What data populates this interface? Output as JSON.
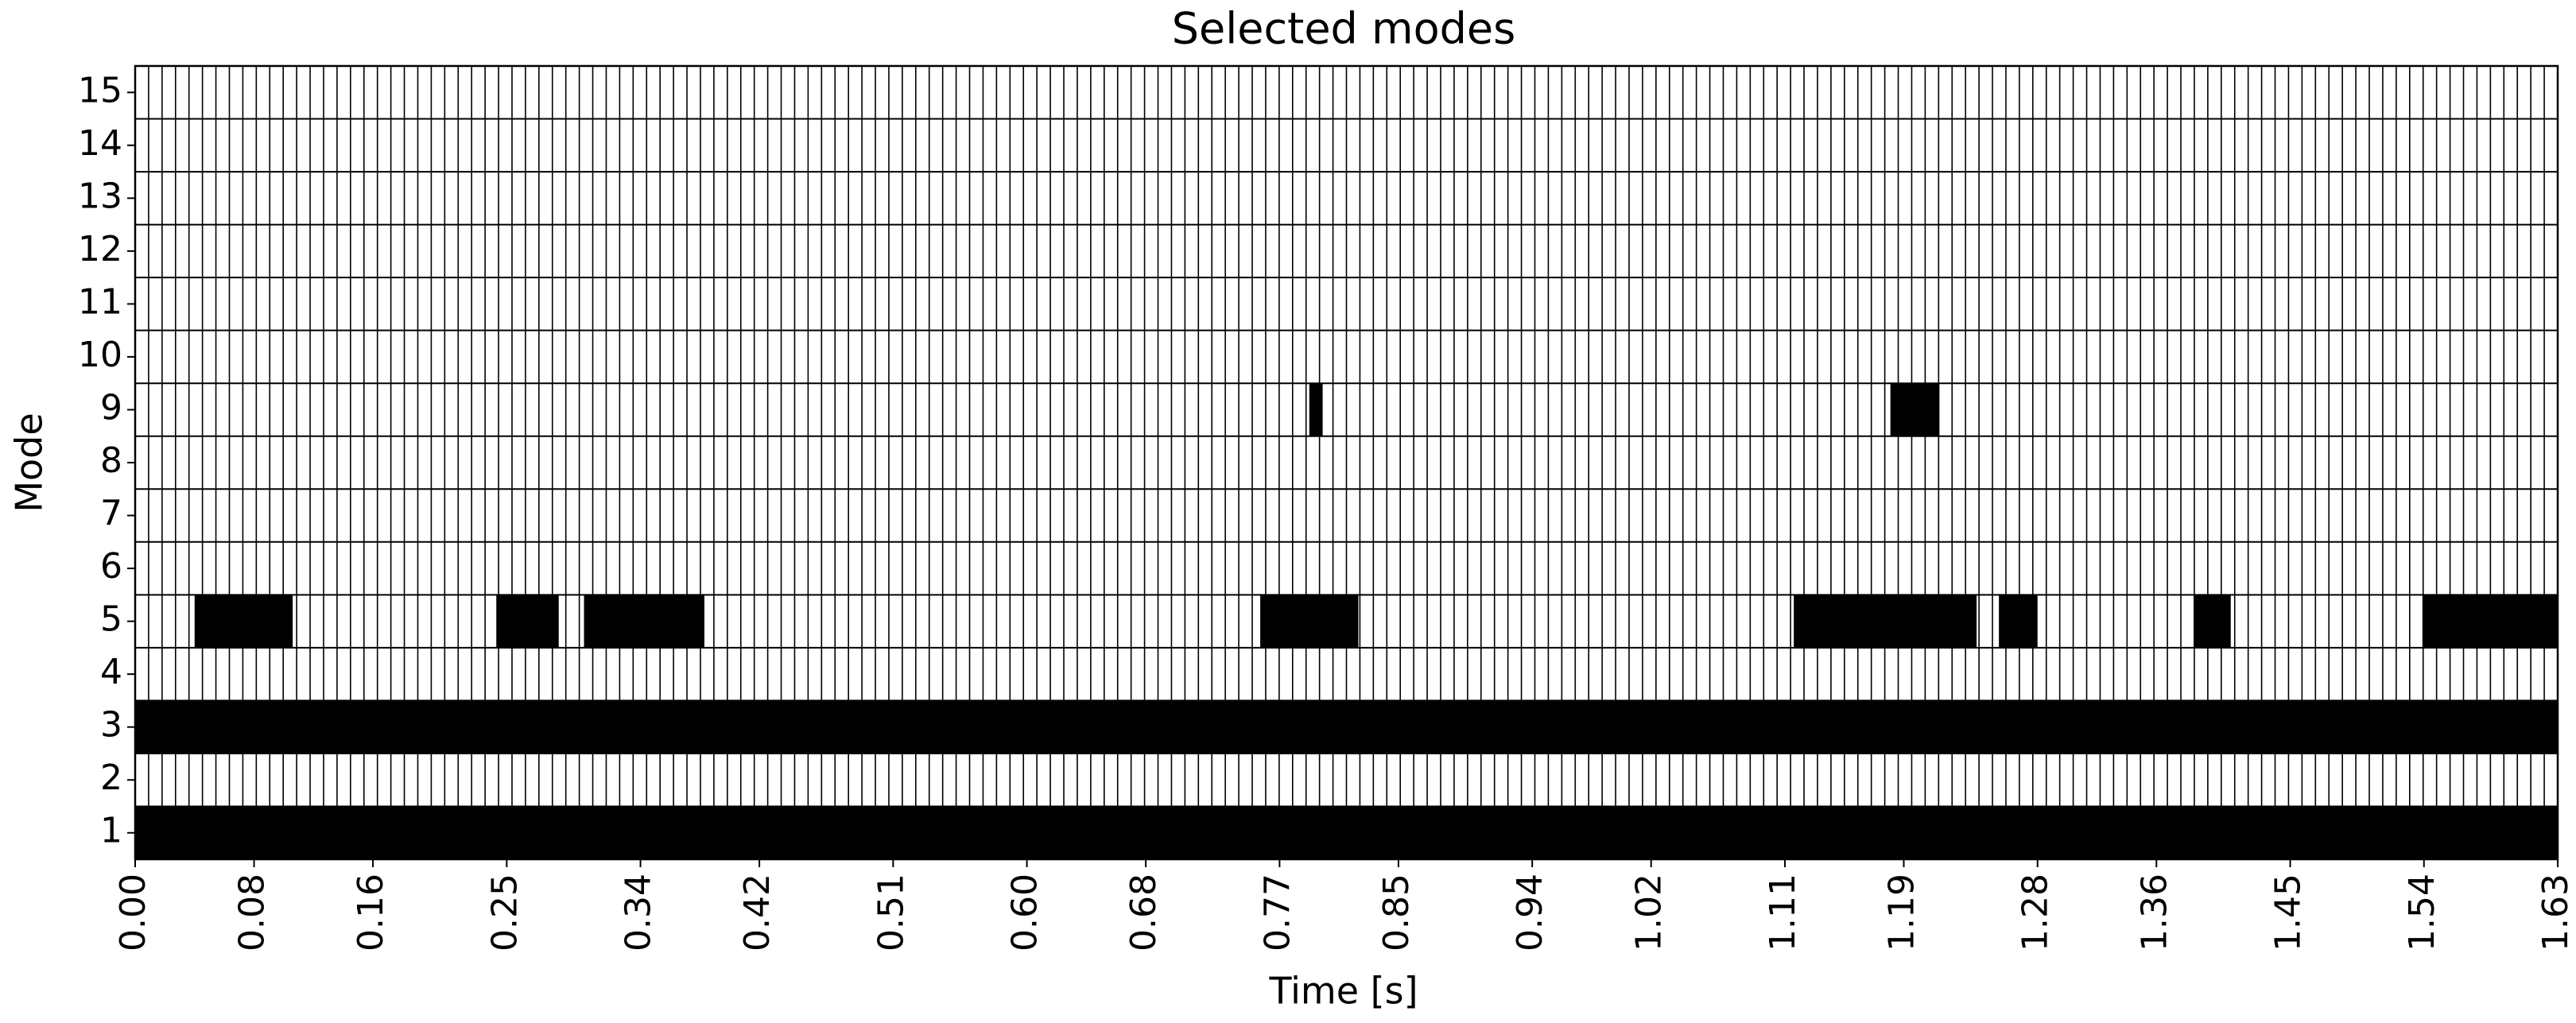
{
  "chart_data": {
    "type": "heatmap",
    "title": "Selected modes",
    "x_label": "Time [s]",
    "y_label": "Mode",
    "xlim": [
      0,
      1.63
    ],
    "xticks": [
      0.0,
      0.08,
      0.16,
      0.25,
      0.34,
      0.42,
      0.51,
      0.6,
      0.68,
      0.77,
      0.85,
      0.94,
      1.02,
      1.11,
      1.19,
      1.28,
      1.36,
      1.45,
      1.54,
      1.63
    ],
    "ylim": [
      0.5,
      15.5
    ],
    "yticks": [
      1,
      2,
      3,
      4,
      5,
      6,
      7,
      8,
      9,
      10,
      11,
      12,
      13,
      14,
      15
    ],
    "color": "#000000",
    "rows": [
      [
        [
          0,
          1.63
        ]
      ],
      [],
      [
        [
          0,
          1.63
        ]
      ],
      [],
      [
        [
          0.04,
          0.106
        ],
        [
          0.243,
          0.285
        ],
        [
          0.302,
          0.383
        ],
        [
          0.757,
          0.823
        ],
        [
          1.116,
          1.239
        ],
        [
          1.254,
          1.28
        ],
        [
          1.385,
          1.41
        ],
        [
          1.539,
          1.63
        ]
      ],
      [],
      [],
      [],
      [
        [
          0.79,
          0.799
        ],
        [
          1.181,
          1.214
        ]
      ],
      [],
      [],
      [],
      [],
      [],
      []
    ]
  }
}
